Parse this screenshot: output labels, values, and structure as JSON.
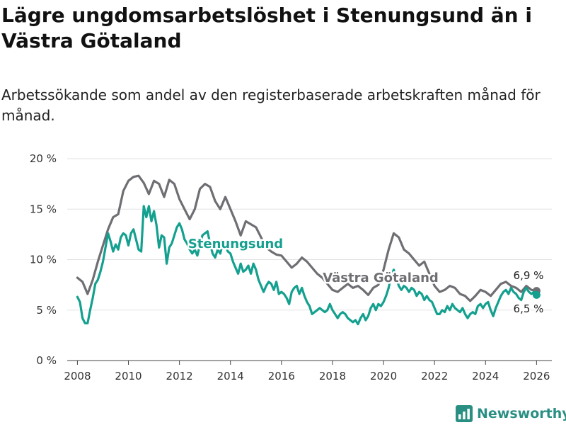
{
  "header": {
    "title": "Lägre ungdomsarbetslöshet i Stenungsund än i Västra Götaland",
    "subtitle": "Arbetssökande som andel av den registerbaserade arbetskraften månad för månad."
  },
  "brand": {
    "name": "Newsworthy"
  },
  "colors": {
    "stenungsund": "#14a08f",
    "vastra_gotaland": "#6e6e73",
    "grid": "#e2e2e2",
    "axis": "#444444"
  },
  "chart_data": {
    "type": "line",
    "title": "Lägre ungdomsarbetslöshet i Stenungsund än i Västra Götaland",
    "xlabel": "",
    "ylabel": "",
    "xlim": [
      2007.6,
      2026.6
    ],
    "ylim": [
      0,
      20
    ],
    "grid": true,
    "x_ticks": [
      2008,
      2010,
      2012,
      2014,
      2016,
      2018,
      2020,
      2022,
      2024,
      2026
    ],
    "x_tick_labels": [
      "2008",
      "2010",
      "2012",
      "2014",
      "2016",
      "2018",
      "2020",
      "2022",
      "2024",
      "2026"
    ],
    "y_ticks": [
      0,
      5,
      10,
      15,
      20
    ],
    "y_tick_labels": [
      "0 %",
      "5 %",
      "10 %",
      "15 %",
      "20 %"
    ],
    "series": [
      {
        "name": "Västra Götaland",
        "label": "Västra Götaland",
        "end_label": "6,9 %",
        "points": [
          [
            2008.0,
            8.2
          ],
          [
            2008.2,
            7.8
          ],
          [
            2008.4,
            6.6
          ],
          [
            2008.6,
            8.0
          ],
          [
            2008.8,
            9.8
          ],
          [
            2009.0,
            11.4
          ],
          [
            2009.2,
            13.0
          ],
          [
            2009.4,
            14.2
          ],
          [
            2009.6,
            14.5
          ],
          [
            2009.8,
            16.8
          ],
          [
            2010.0,
            17.8
          ],
          [
            2010.2,
            18.2
          ],
          [
            2010.4,
            18.3
          ],
          [
            2010.6,
            17.6
          ],
          [
            2010.8,
            16.5
          ],
          [
            2011.0,
            17.8
          ],
          [
            2011.2,
            17.5
          ],
          [
            2011.4,
            16.2
          ],
          [
            2011.6,
            17.9
          ],
          [
            2011.8,
            17.5
          ],
          [
            2012.0,
            16.0
          ],
          [
            2012.2,
            15.0
          ],
          [
            2012.4,
            14.0
          ],
          [
            2012.6,
            15.0
          ],
          [
            2012.8,
            17.0
          ],
          [
            2013.0,
            17.5
          ],
          [
            2013.2,
            17.2
          ],
          [
            2013.4,
            15.8
          ],
          [
            2013.6,
            15.0
          ],
          [
            2013.8,
            16.2
          ],
          [
            2014.0,
            15.0
          ],
          [
            2014.2,
            13.8
          ],
          [
            2014.4,
            12.4
          ],
          [
            2014.6,
            13.8
          ],
          [
            2014.8,
            13.5
          ],
          [
            2015.0,
            13.2
          ],
          [
            2015.2,
            12.2
          ],
          [
            2015.4,
            11.2
          ],
          [
            2015.6,
            10.8
          ],
          [
            2015.8,
            10.5
          ],
          [
            2016.0,
            10.4
          ],
          [
            2016.2,
            9.8
          ],
          [
            2016.4,
            9.2
          ],
          [
            2016.6,
            9.6
          ],
          [
            2016.8,
            10.2
          ],
          [
            2017.0,
            9.8
          ],
          [
            2017.2,
            9.2
          ],
          [
            2017.4,
            8.6
          ],
          [
            2017.6,
            8.2
          ],
          [
            2017.8,
            7.6
          ],
          [
            2018.0,
            7.0
          ],
          [
            2018.2,
            6.8
          ],
          [
            2018.4,
            7.2
          ],
          [
            2018.6,
            7.6
          ],
          [
            2018.8,
            7.2
          ],
          [
            2019.0,
            7.4
          ],
          [
            2019.2,
            7.0
          ],
          [
            2019.4,
            6.5
          ],
          [
            2019.6,
            7.2
          ],
          [
            2019.8,
            7.5
          ],
          [
            2020.0,
            9.0
          ],
          [
            2020.2,
            11.0
          ],
          [
            2020.4,
            12.6
          ],
          [
            2020.6,
            12.2
          ],
          [
            2020.8,
            11.0
          ],
          [
            2021.0,
            10.6
          ],
          [
            2021.2,
            10.0
          ],
          [
            2021.4,
            9.4
          ],
          [
            2021.6,
            9.8
          ],
          [
            2021.8,
            8.6
          ],
          [
            2022.0,
            7.4
          ],
          [
            2022.2,
            6.8
          ],
          [
            2022.4,
            7.0
          ],
          [
            2022.6,
            7.4
          ],
          [
            2022.8,
            7.2
          ],
          [
            2023.0,
            6.6
          ],
          [
            2023.2,
            6.4
          ],
          [
            2023.4,
            5.9
          ],
          [
            2023.6,
            6.4
          ],
          [
            2023.8,
            7.0
          ],
          [
            2024.0,
            6.8
          ],
          [
            2024.2,
            6.4
          ],
          [
            2024.4,
            7.0
          ],
          [
            2024.6,
            7.6
          ],
          [
            2024.8,
            7.8
          ],
          [
            2025.0,
            7.4
          ],
          [
            2025.2,
            7.2
          ],
          [
            2025.4,
            6.8
          ],
          [
            2025.6,
            7.4
          ],
          [
            2025.8,
            7.0
          ],
          [
            2026.0,
            6.9
          ]
        ]
      },
      {
        "name": "Stenungsund",
        "label": "Stenungsund",
        "end_label": "6,5 %",
        "points": [
          [
            2008.0,
            6.3
          ],
          [
            2008.1,
            5.8
          ],
          [
            2008.2,
            4.2
          ],
          [
            2008.3,
            3.7
          ],
          [
            2008.4,
            3.7
          ],
          [
            2008.5,
            5.0
          ],
          [
            2008.6,
            6.2
          ],
          [
            2008.7,
            7.6
          ],
          [
            2008.8,
            8.0
          ],
          [
            2008.9,
            8.8
          ],
          [
            2009.0,
            9.8
          ],
          [
            2009.1,
            11.2
          ],
          [
            2009.2,
            12.6
          ],
          [
            2009.3,
            11.8
          ],
          [
            2009.4,
            10.8
          ],
          [
            2009.5,
            11.5
          ],
          [
            2009.6,
            11.0
          ],
          [
            2009.7,
            12.2
          ],
          [
            2009.8,
            12.6
          ],
          [
            2009.9,
            12.4
          ],
          [
            2010.0,
            11.4
          ],
          [
            2010.1,
            12.6
          ],
          [
            2010.2,
            13.0
          ],
          [
            2010.3,
            12.0
          ],
          [
            2010.4,
            11.0
          ],
          [
            2010.5,
            10.8
          ],
          [
            2010.6,
            15.3
          ],
          [
            2010.7,
            14.2
          ],
          [
            2010.8,
            15.3
          ],
          [
            2010.9,
            13.8
          ],
          [
            2011.0,
            14.8
          ],
          [
            2011.1,
            13.4
          ],
          [
            2011.2,
            11.2
          ],
          [
            2011.3,
            12.4
          ],
          [
            2011.4,
            12.2
          ],
          [
            2011.5,
            9.6
          ],
          [
            2011.6,
            11.2
          ],
          [
            2011.7,
            11.6
          ],
          [
            2011.8,
            12.4
          ],
          [
            2011.9,
            13.2
          ],
          [
            2012.0,
            13.6
          ],
          [
            2012.1,
            13.0
          ],
          [
            2012.2,
            12.0
          ],
          [
            2012.3,
            11.6
          ],
          [
            2012.4,
            11.0
          ],
          [
            2012.5,
            10.6
          ],
          [
            2012.6,
            11.0
          ],
          [
            2012.7,
            10.4
          ],
          [
            2012.8,
            11.4
          ],
          [
            2012.9,
            12.4
          ],
          [
            2013.0,
            12.6
          ],
          [
            2013.1,
            12.8
          ],
          [
            2013.2,
            11.6
          ],
          [
            2013.3,
            10.6
          ],
          [
            2013.4,
            10.2
          ],
          [
            2013.5,
            11.0
          ],
          [
            2013.6,
            10.6
          ],
          [
            2013.7,
            11.6
          ],
          [
            2013.8,
            11.4
          ],
          [
            2013.9,
            10.8
          ],
          [
            2014.0,
            10.6
          ],
          [
            2014.1,
            9.8
          ],
          [
            2014.2,
            9.2
          ],
          [
            2014.3,
            8.6
          ],
          [
            2014.4,
            9.6
          ],
          [
            2014.5,
            8.8
          ],
          [
            2014.6,
            9.0
          ],
          [
            2014.7,
            9.4
          ],
          [
            2014.8,
            8.6
          ],
          [
            2014.9,
            9.6
          ],
          [
            2015.0,
            9.0
          ],
          [
            2015.1,
            8.0
          ],
          [
            2015.2,
            7.4
          ],
          [
            2015.3,
            6.8
          ],
          [
            2015.4,
            7.4
          ],
          [
            2015.5,
            7.8
          ],
          [
            2015.6,
            7.6
          ],
          [
            2015.7,
            7.0
          ],
          [
            2015.8,
            7.8
          ],
          [
            2015.9,
            6.6
          ],
          [
            2016.0,
            6.8
          ],
          [
            2016.1,
            6.6
          ],
          [
            2016.2,
            6.2
          ],
          [
            2016.3,
            5.6
          ],
          [
            2016.4,
            6.8
          ],
          [
            2016.5,
            7.2
          ],
          [
            2016.6,
            7.4
          ],
          [
            2016.7,
            6.6
          ],
          [
            2016.8,
            7.2
          ],
          [
            2016.9,
            6.4
          ],
          [
            2017.0,
            5.8
          ],
          [
            2017.1,
            5.4
          ],
          [
            2017.2,
            4.6
          ],
          [
            2017.3,
            4.8
          ],
          [
            2017.4,
            5.0
          ],
          [
            2017.5,
            5.2
          ],
          [
            2017.6,
            5.0
          ],
          [
            2017.7,
            4.8
          ],
          [
            2017.8,
            5.0
          ],
          [
            2017.9,
            5.6
          ],
          [
            2018.0,
            5.0
          ],
          [
            2018.1,
            4.6
          ],
          [
            2018.2,
            4.2
          ],
          [
            2018.3,
            4.6
          ],
          [
            2018.4,
            4.8
          ],
          [
            2018.5,
            4.6
          ],
          [
            2018.6,
            4.2
          ],
          [
            2018.7,
            4.0
          ],
          [
            2018.8,
            3.8
          ],
          [
            2018.9,
            4.0
          ],
          [
            2019.0,
            3.6
          ],
          [
            2019.1,
            4.2
          ],
          [
            2019.2,
            4.6
          ],
          [
            2019.3,
            4.0
          ],
          [
            2019.4,
            4.4
          ],
          [
            2019.5,
            5.2
          ],
          [
            2019.6,
            5.6
          ],
          [
            2019.7,
            5.0
          ],
          [
            2019.8,
            5.6
          ],
          [
            2019.9,
            5.4
          ],
          [
            2020.0,
            5.8
          ],
          [
            2020.1,
            6.4
          ],
          [
            2020.2,
            7.2
          ],
          [
            2020.3,
            8.4
          ],
          [
            2020.4,
            9.0
          ],
          [
            2020.5,
            8.2
          ],
          [
            2020.6,
            7.4
          ],
          [
            2020.7,
            7.0
          ],
          [
            2020.8,
            7.4
          ],
          [
            2020.9,
            7.2
          ],
          [
            2021.0,
            6.8
          ],
          [
            2021.1,
            7.2
          ],
          [
            2021.2,
            7.0
          ],
          [
            2021.3,
            6.4
          ],
          [
            2021.4,
            6.8
          ],
          [
            2021.5,
            6.6
          ],
          [
            2021.6,
            6.0
          ],
          [
            2021.7,
            6.4
          ],
          [
            2021.8,
            6.0
          ],
          [
            2021.9,
            5.8
          ],
          [
            2022.0,
            5.2
          ],
          [
            2022.1,
            4.6
          ],
          [
            2022.2,
            4.6
          ],
          [
            2022.3,
            5.0
          ],
          [
            2022.4,
            4.8
          ],
          [
            2022.5,
            5.4
          ],
          [
            2022.6,
            5.0
          ],
          [
            2022.7,
            5.6
          ],
          [
            2022.8,
            5.2
          ],
          [
            2022.9,
            5.0
          ],
          [
            2023.0,
            4.8
          ],
          [
            2023.1,
            5.2
          ],
          [
            2023.2,
            4.6
          ],
          [
            2023.3,
            4.2
          ],
          [
            2023.4,
            4.6
          ],
          [
            2023.5,
            4.8
          ],
          [
            2023.6,
            4.6
          ],
          [
            2023.7,
            5.4
          ],
          [
            2023.8,
            5.6
          ],
          [
            2023.9,
            5.2
          ],
          [
            2024.0,
            5.6
          ],
          [
            2024.1,
            5.8
          ],
          [
            2024.2,
            5.0
          ],
          [
            2024.3,
            4.4
          ],
          [
            2024.4,
            5.2
          ],
          [
            2024.5,
            5.8
          ],
          [
            2024.6,
            6.4
          ],
          [
            2024.7,
            6.8
          ],
          [
            2024.8,
            7.0
          ],
          [
            2024.9,
            6.6
          ],
          [
            2025.0,
            7.2
          ],
          [
            2025.1,
            6.8
          ],
          [
            2025.2,
            6.6
          ],
          [
            2025.3,
            6.2
          ],
          [
            2025.4,
            6.0
          ],
          [
            2025.5,
            6.8
          ],
          [
            2025.6,
            7.2
          ],
          [
            2025.7,
            6.8
          ],
          [
            2025.8,
            6.6
          ],
          [
            2025.9,
            6.8
          ],
          [
            2026.0,
            6.5
          ]
        ]
      }
    ]
  }
}
